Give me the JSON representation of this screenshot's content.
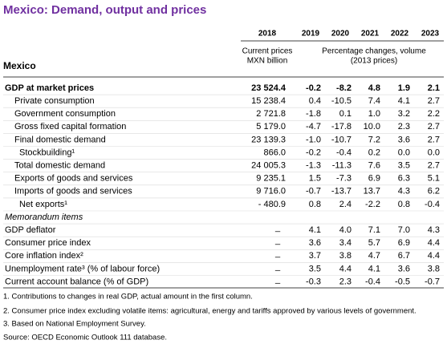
{
  "title": "Mexico: Demand, output and prices",
  "header": {
    "years": [
      "2018",
      "2019",
      "2020",
      "2021",
      "2022",
      "2023"
    ],
    "col2018_note": [
      "Current prices",
      "MXN billion"
    ],
    "pct_note": [
      "Percentage changes, volume",
      "(2013 prices)"
    ],
    "country": "Mexico"
  },
  "table": {
    "rows": [
      {
        "label": "GDP at market prices",
        "values": [
          "23 524.4",
          "-0.2",
          "-8.2",
          "4.8",
          "1.9",
          "2.1"
        ]
      },
      {
        "label": "Private consumption",
        "values": [
          "15 238.4",
          "0.4",
          "-10.5",
          "7.4",
          "4.1",
          "2.7"
        ]
      },
      {
        "label": "Government consumption",
        "values": [
          "2 721.8",
          "-1.8",
          "0.1",
          "1.0",
          "3.2",
          "2.2"
        ]
      },
      {
        "label": "Gross fixed capital formation",
        "values": [
          "5 179.0",
          "-4.7",
          "-17.8",
          "10.0",
          "2.3",
          "2.7"
        ]
      },
      {
        "label": "Final domestic demand",
        "values": [
          "23 139.3",
          "-1.0",
          "-10.7",
          "7.2",
          "3.6",
          "2.7"
        ]
      },
      {
        "label": "Stockbuilding¹",
        "values": [
          "866.0",
          "-0.2",
          "-0.4",
          "0.2",
          "0.0",
          "0.0"
        ]
      },
      {
        "label": "Total domestic demand",
        "values": [
          "24 005.3",
          "-1.3",
          "-11.3",
          "7.6",
          "3.5",
          "2.7"
        ]
      },
      {
        "label": "Exports of goods and services",
        "values": [
          "9 235.1",
          "1.5",
          "-7.3",
          "6.9",
          "6.3",
          "5.1"
        ]
      },
      {
        "label": "Imports of goods and services",
        "values": [
          "9 716.0",
          "-0.7",
          "-13.7",
          "13.7",
          "4.3",
          "6.2"
        ]
      },
      {
        "label": "Net exports¹",
        "values": [
          "- 480.9",
          "0.8",
          "2.4",
          "-2.2",
          "0.8",
          "-0.4"
        ]
      },
      {
        "label": "Memorandum items",
        "values": []
      },
      {
        "label": "GDP deflator",
        "values": [
          "_",
          "4.1",
          "4.0",
          "7.1",
          "7.0",
          "4.3"
        ]
      },
      {
        "label": "Consumer price index",
        "values": [
          "_",
          "3.6",
          "3.4",
          "5.7",
          "6.9",
          "4.4"
        ]
      },
      {
        "label": "Core inflation index²",
        "values": [
          "_",
          "3.7",
          "3.8",
          "4.7",
          "6.7",
          "4.4"
        ]
      },
      {
        "label": "Unemployment rate³ (% of labour force)",
        "values": [
          "_",
          "3.5",
          "4.4",
          "4.1",
          "3.6",
          "3.8"
        ]
      },
      {
        "label": "Current account balance (% of GDP)",
        "values": [
          "_",
          "-0.3",
          "2.3",
          "-0.4",
          "-0.5",
          "-0.7"
        ]
      }
    ]
  },
  "notes": [
    "1. Contributions to changes in real GDP, actual amount in the first column.",
    "2. Consumer price index excluding volatile items: agricultural, energy and tariffs approved by various levels of government.",
    "3. Based on National Employment Survey.",
    "Source: OECD Economic Outlook 111 database."
  ]
}
